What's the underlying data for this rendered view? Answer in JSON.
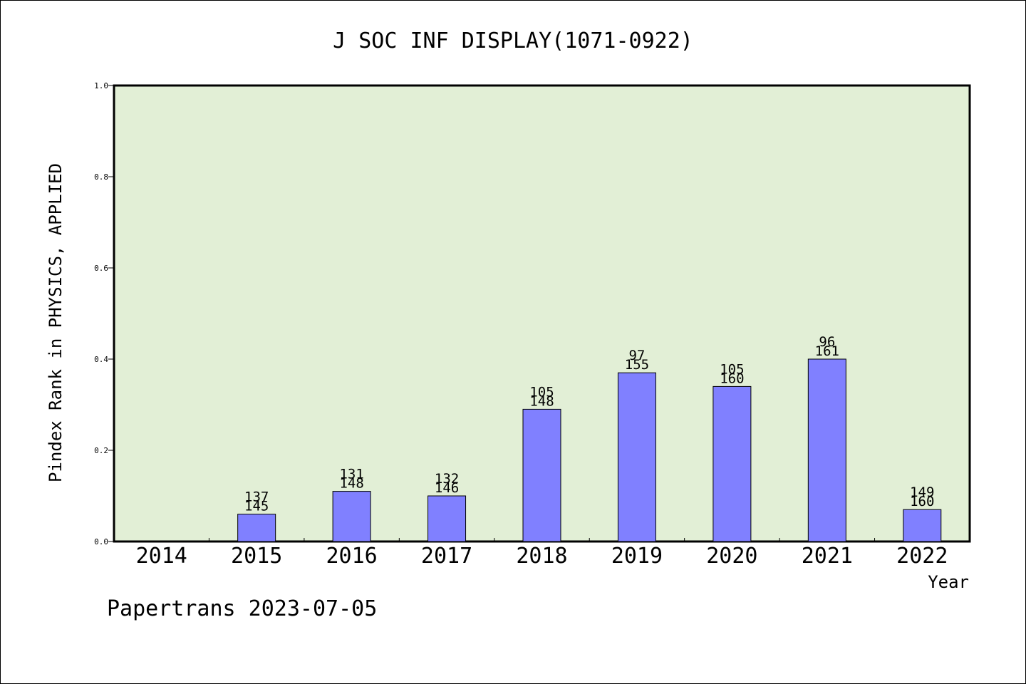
{
  "chart_data": {
    "type": "bar",
    "title": "J SOC INF DISPLAY(1071-0922)",
    "xlabel": "Year",
    "ylabel": "Pindex Rank in PHYSICS, APPLIED",
    "ylim": [
      0,
      1.0
    ],
    "yticks": [
      "0.0",
      "0.2",
      "0.4",
      "0.6",
      "0.8",
      "1.0"
    ],
    "categories": [
      "2014",
      "2015",
      "2016",
      "2017",
      "2018",
      "2019",
      "2020",
      "2021",
      "2022"
    ],
    "values": [
      null,
      0.06,
      0.11,
      0.1,
      0.29,
      0.37,
      0.34,
      0.4,
      0.07
    ],
    "rank_labels": [
      "",
      "137",
      "131",
      "132",
      "105",
      "97",
      "105",
      "96",
      "149"
    ],
    "total_labels": [
      "",
      "145",
      "148",
      "146",
      "148",
      "155",
      "160",
      "161",
      "160"
    ],
    "grid": false
  },
  "colors": {
    "plot_background": "#e2efd6",
    "bar_fill": "#8080ff",
    "bar_stroke": "#000000"
  },
  "footer": "Papertrans 2023-07-05"
}
